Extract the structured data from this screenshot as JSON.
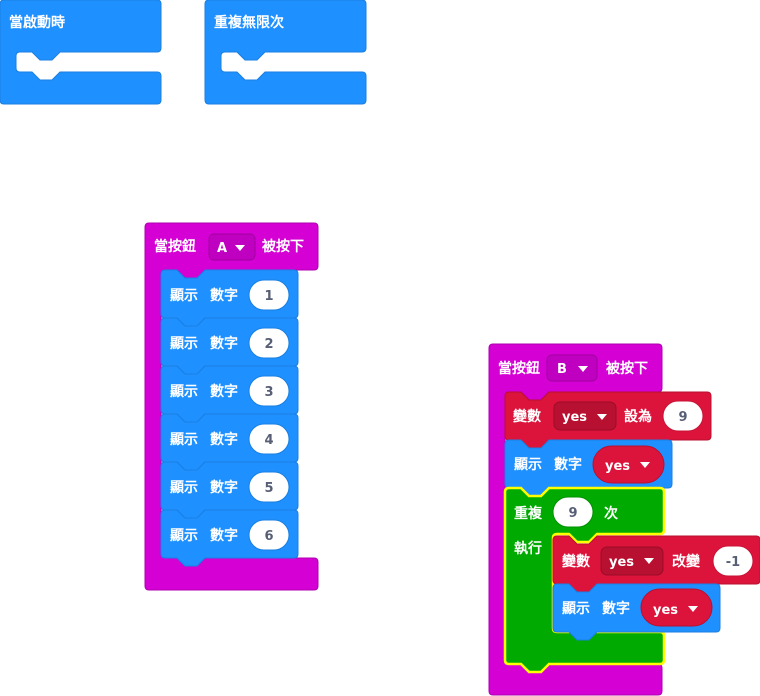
{
  "colors": {
    "basic": "#1e90ff",
    "input": "#d400d4",
    "variables": "#dc143c",
    "loops": "#00aa00",
    "field": "#ffffff",
    "field_text": "#575e75",
    "highlight": "#ffff00"
  },
  "blocks": {
    "on_start": {
      "label": "當啟動時"
    },
    "forever": {
      "label": "重複無限次"
    },
    "button_a": {
      "prefix": "當按鈕",
      "button": "A",
      "suffix": "被按下",
      "shows": [
        {
          "label1": "顯示",
          "label2": "數字",
          "value": "1"
        },
        {
          "label1": "顯示",
          "label2": "數字",
          "value": "2"
        },
        {
          "label1": "顯示",
          "label2": "數字",
          "value": "3"
        },
        {
          "label1": "顯示",
          "label2": "數字",
          "value": "4"
        },
        {
          "label1": "顯示",
          "label2": "數字",
          "value": "5"
        },
        {
          "label1": "顯示",
          "label2": "數字",
          "value": "6"
        }
      ]
    },
    "button_b": {
      "prefix": "當按鈕",
      "button": "B",
      "suffix": "被按下",
      "set_var": {
        "label": "變數",
        "var": "yes",
        "suffix": "設為",
        "value": "9"
      },
      "show_var": {
        "label1": "顯示",
        "label2": "數字",
        "var": "yes"
      },
      "repeat": {
        "label": "重複",
        "count": "9",
        "times": "次",
        "do": "執行",
        "change_var": {
          "label": "變數",
          "var": "yes",
          "suffix": "改變",
          "value": "-1"
        },
        "show_var": {
          "label1": "顯示",
          "label2": "數字",
          "var": "yes"
        }
      }
    }
  }
}
